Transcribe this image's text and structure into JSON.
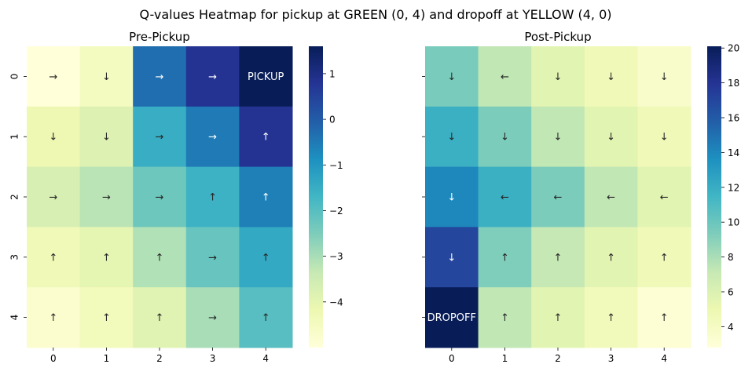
{
  "figure": {
    "suptitle": "Q-values Heatmap for pickup at GREEN (0, 4) and dropoff at YELLOW (4, 0)"
  },
  "chart_data": [
    {
      "type": "heatmap",
      "title": "Pre-Pickup",
      "xlabel": "",
      "ylabel": "",
      "x_categories": [
        "0",
        "1",
        "2",
        "3",
        "4"
      ],
      "y_categories": [
        "0",
        "1",
        "2",
        "3",
        "4"
      ],
      "colormap": "YlGnBu",
      "colorbar": {
        "vmin": -5.0,
        "vmax": 1.6,
        "ticks": [
          -4,
          -3,
          -2,
          -1,
          0,
          1
        ],
        "tick_labels": [
          "−4",
          "−3",
          "−2",
          "−1",
          "0",
          "1"
        ]
      },
      "values": [
        [
          -5.0,
          -4.5,
          -0.3,
          0.8,
          1.6
        ],
        [
          -4.2,
          -3.8,
          -1.5,
          -0.5,
          0.8
        ],
        [
          -3.7,
          -3.2,
          -2.3,
          -1.6,
          -0.6
        ],
        [
          -4.3,
          -4.0,
          -3.1,
          -2.2,
          -1.4
        ],
        [
          -4.8,
          -4.4,
          -3.9,
          -3.0,
          -2.0
        ]
      ],
      "annotations": [
        [
          "→",
          "↓",
          "→",
          "→",
          "PICKUP"
        ],
        [
          "↓",
          "↓",
          "→",
          "→",
          "↑"
        ],
        [
          "→",
          "→",
          "→",
          "↑",
          "↑"
        ],
        [
          "↑",
          "↑",
          "↑",
          "→",
          "↑"
        ],
        [
          "↑",
          "↑",
          "↑",
          "→",
          "↑"
        ]
      ]
    },
    {
      "type": "heatmap",
      "title": "Post-Pickup",
      "xlabel": "",
      "ylabel": "",
      "x_categories": [
        "0",
        "1",
        "2",
        "3",
        "4"
      ],
      "y_categories": [
        "0",
        "1",
        "2",
        "3",
        "4"
      ],
      "colormap": "YlGnBu",
      "colorbar": {
        "vmin": 2.8,
        "vmax": 20.1,
        "ticks": [
          4,
          6,
          8,
          10,
          12,
          14,
          16,
          18,
          20
        ],
        "tick_labels": [
          "4",
          "6",
          "8",
          "10",
          "12",
          "14",
          "16",
          "18",
          "20"
        ]
      },
      "values": [
        [
          9.5,
          7.3,
          5.6,
          4.6,
          3.6
        ],
        [
          11.8,
          9.4,
          7.3,
          5.6,
          4.6
        ],
        [
          14.0,
          11.8,
          9.4,
          7.3,
          5.6
        ],
        [
          17.0,
          9.3,
          7.2,
          5.6,
          4.6
        ],
        [
          20.1,
          7.3,
          5.6,
          4.4,
          3.1
        ]
      ],
      "annotations": [
        [
          "↓",
          "←",
          "↓",
          "↓",
          "↓"
        ],
        [
          "↓",
          "↓",
          "↓",
          "↓",
          "↓"
        ],
        [
          "↓",
          "←",
          "←",
          "←",
          "←"
        ],
        [
          "↓",
          "↑",
          "↑",
          "↑",
          "↑"
        ],
        [
          "DROPOFF",
          "↑",
          "↑",
          "↑",
          "↑"
        ]
      ]
    }
  ]
}
